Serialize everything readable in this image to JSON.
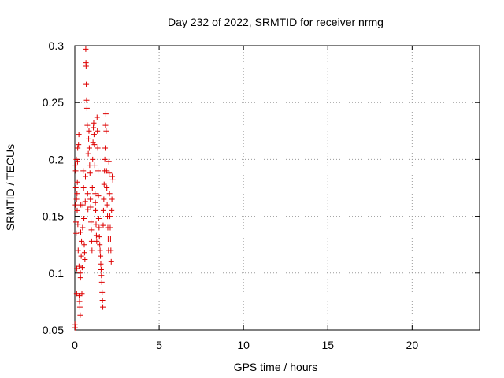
{
  "chart_data": {
    "type": "scatter",
    "title": "Day 232 of 2022, SRMTID for receiver nrmg",
    "xlabel": "GPS time / hours",
    "ylabel": "SRMTID / TECUs",
    "xlim": [
      0,
      24
    ],
    "ylim": [
      0.05,
      0.3
    ],
    "xticks": [
      0,
      5,
      10,
      15,
      20
    ],
    "xtick_labels": [
      "0",
      "5",
      "10",
      "15",
      "20"
    ],
    "yticks": [
      0.05,
      0.1,
      0.15,
      0.2,
      0.25,
      0.3
    ],
    "ytick_labels": [
      "0.05",
      "0.1",
      "0.15",
      "0.2",
      "0.25",
      "0.3"
    ],
    "grid": true,
    "marker": "+",
    "series": [
      {
        "color": "#dd0000",
        "points": [
          [
            0.01,
            0.055
          ],
          [
            0.02,
            0.052
          ],
          [
            0.03,
            0.195
          ],
          [
            0.04,
            0.16
          ],
          [
            0.05,
            0.19
          ],
          [
            0.06,
            0.175
          ],
          [
            0.07,
            0.145
          ],
          [
            0.08,
            0.135
          ],
          [
            0.09,
            0.2
          ],
          [
            0.1,
            0.165
          ],
          [
            0.11,
            0.082
          ],
          [
            0.12,
            0.104
          ],
          [
            0.13,
            0.17
          ],
          [
            0.14,
            0.155
          ],
          [
            0.15,
            0.18
          ],
          [
            0.16,
            0.198
          ],
          [
            0.17,
            0.21
          ],
          [
            0.18,
            0.143
          ],
          [
            0.2,
            0.12
          ],
          [
            0.22,
            0.213
          ],
          [
            0.24,
            0.222
          ],
          [
            0.25,
            0.106
          ],
          [
            0.26,
            0.08
          ],
          [
            0.28,
            0.075
          ],
          [
            0.3,
            0.07
          ],
          [
            0.32,
            0.063
          ],
          [
            0.33,
            0.1
          ],
          [
            0.34,
            0.096
          ],
          [
            0.35,
            0.136
          ],
          [
            0.36,
            0.16
          ],
          [
            0.38,
            0.115
          ],
          [
            0.4,
            0.128
          ],
          [
            0.42,
            0.082
          ],
          [
            0.44,
            0.105
          ],
          [
            0.46,
            0.14
          ],
          [
            0.48,
            0.16
          ],
          [
            0.5,
            0.19
          ],
          [
            0.52,
            0.175
          ],
          [
            0.54,
            0.148
          ],
          [
            0.56,
            0.125
          ],
          [
            0.58,
            0.118
          ],
          [
            0.6,
            0.112
          ],
          [
            0.62,
            0.163
          ],
          [
            0.63,
            0.185
          ],
          [
            0.65,
            0.297
          ],
          [
            0.66,
            0.285
          ],
          [
            0.67,
            0.282
          ],
          [
            0.68,
            0.266
          ],
          [
            0.7,
            0.252
          ],
          [
            0.72,
            0.245
          ],
          [
            0.74,
            0.23
          ],
          [
            0.76,
            0.17
          ],
          [
            0.78,
            0.156
          ],
          [
            0.8,
            0.205
          ],
          [
            0.82,
            0.218
          ],
          [
            0.84,
            0.225
          ],
          [
            0.86,
            0.21
          ],
          [
            0.88,
            0.195
          ],
          [
            0.9,
            0.188
          ],
          [
            0.92,
            0.165
          ],
          [
            0.94,
            0.158
          ],
          [
            0.96,
            0.145
          ],
          [
            0.98,
            0.138
          ],
          [
            1.0,
            0.128
          ],
          [
            1.02,
            0.12
          ],
          [
            1.04,
            0.175
          ],
          [
            1.06,
            0.2
          ],
          [
            1.08,
            0.215
          ],
          [
            1.1,
            0.228
          ],
          [
            1.12,
            0.232
          ],
          [
            1.14,
            0.222
          ],
          [
            1.16,
            0.213
          ],
          [
            1.18,
            0.195
          ],
          [
            1.2,
            0.17
          ],
          [
            1.22,
            0.162
          ],
          [
            1.24,
            0.155
          ],
          [
            1.26,
            0.143
          ],
          [
            1.28,
            0.133
          ],
          [
            1.3,
            0.128
          ],
          [
            1.32,
            0.237
          ],
          [
            1.34,
            0.225
          ],
          [
            1.36,
            0.21
          ],
          [
            1.38,
            0.19
          ],
          [
            1.4,
            0.168
          ],
          [
            1.42,
            0.148
          ],
          [
            1.44,
            0.14
          ],
          [
            1.46,
            0.132
          ],
          [
            1.48,
            0.125
          ],
          [
            1.5,
            0.12
          ],
          [
            1.52,
            0.115
          ],
          [
            1.54,
            0.108
          ],
          [
            1.56,
            0.103
          ],
          [
            1.58,
            0.098
          ],
          [
            1.6,
            0.092
          ],
          [
            1.62,
            0.083
          ],
          [
            1.64,
            0.076
          ],
          [
            1.66,
            0.07
          ],
          [
            1.68,
            0.142
          ],
          [
            1.7,
            0.155
          ],
          [
            1.72,
            0.165
          ],
          [
            1.74,
            0.178
          ],
          [
            1.76,
            0.19
          ],
          [
            1.78,
            0.2
          ],
          [
            1.8,
            0.21
          ],
          [
            1.82,
            0.23
          ],
          [
            1.84,
            0.24
          ],
          [
            1.86,
            0.225
          ],
          [
            1.88,
            0.19
          ],
          [
            1.9,
            0.175
          ],
          [
            1.92,
            0.16
          ],
          [
            1.94,
            0.15
          ],
          [
            1.96,
            0.14
          ],
          [
            1.98,
            0.13
          ],
          [
            2.0,
            0.12
          ],
          [
            2.02,
            0.198
          ],
          [
            2.04,
            0.188
          ],
          [
            2.06,
            0.17
          ],
          [
            2.08,
            0.15
          ],
          [
            2.1,
            0.14
          ],
          [
            2.12,
            0.13
          ],
          [
            2.14,
            0.12
          ],
          [
            2.16,
            0.11
          ],
          [
            2.18,
            0.155
          ],
          [
            2.2,
            0.165
          ],
          [
            2.22,
            0.185
          ],
          [
            2.25,
            0.182
          ]
        ]
      }
    ]
  }
}
